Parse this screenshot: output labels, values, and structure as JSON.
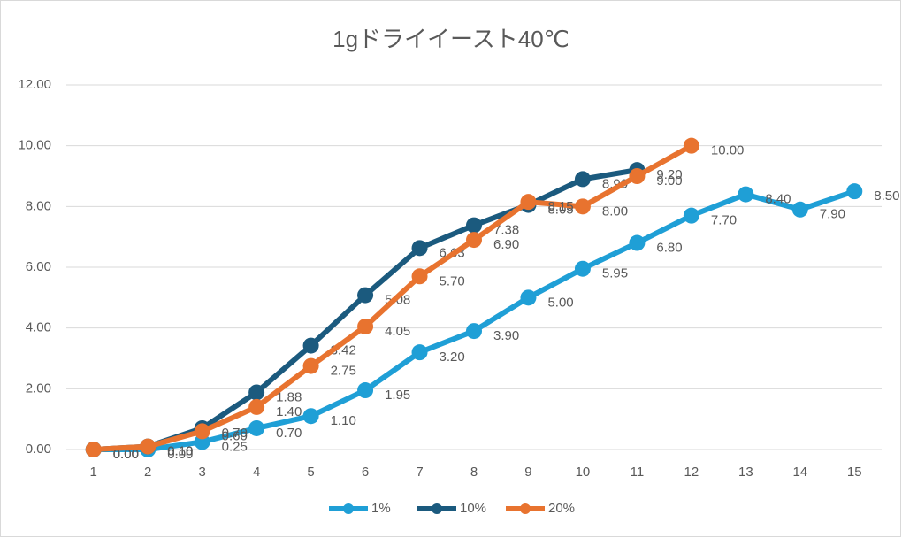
{
  "chart_data": {
    "type": "line",
    "title": "1gドライイースト40℃",
    "categories": [
      "1",
      "2",
      "3",
      "4",
      "5",
      "6",
      "7",
      "8",
      "9",
      "10",
      "11",
      "12",
      "13",
      "14",
      "15"
    ],
    "ylim": [
      0,
      12
    ],
    "yticks": [
      {
        "value": 0,
        "label": "0.00"
      },
      {
        "value": 2,
        "label": "2.00"
      },
      {
        "value": 4,
        "label": "4.00"
      },
      {
        "value": 6,
        "label": "6.00"
      },
      {
        "value": 8,
        "label": "8.00"
      },
      {
        "value": 10,
        "label": "10.00"
      },
      {
        "value": 12,
        "label": "12.00"
      }
    ],
    "grid": true,
    "legend": "bottom",
    "series": [
      {
        "name": "1%",
        "color": "#1f9fd6",
        "values": [
          0,
          0,
          0.25,
          0.7,
          1.1,
          1.95,
          3.2,
          3.9,
          5,
          5.95,
          6.8,
          7.7,
          8.4,
          7.9,
          8.5
        ],
        "value_labels": [
          "0.00",
          "0.00",
          "0.25",
          "0.70",
          "1.10",
          "1.95",
          "3.20",
          "3.90",
          "5.00",
          "5.95",
          "6.80",
          "7.70",
          "8.40",
          "7.90",
          "8.50"
        ]
      },
      {
        "name": "10%",
        "color": "#1b5a7e",
        "values": [
          0,
          0.1,
          0.7,
          1.88,
          3.42,
          5.08,
          6.63,
          7.38,
          8.05,
          8.9,
          9.2,
          null,
          null,
          null,
          null
        ],
        "value_labels": [
          "0.00",
          "0.10",
          "0.70",
          "1.88",
          "3.42",
          "5.08",
          "6.63",
          "7.38",
          "8.05",
          "8.90",
          "9.20",
          null,
          null,
          null,
          null
        ]
      },
      {
        "name": "20%",
        "color": "#e8732f",
        "values": [
          0,
          0.1,
          0.6,
          1.4,
          2.75,
          4.05,
          5.7,
          6.9,
          8.15,
          8,
          9,
          10,
          null,
          null,
          null
        ],
        "value_labels": [
          "0.00",
          "0.10",
          "0.60",
          "1.40",
          "2.75",
          "4.05",
          "5.70",
          "6.90",
          "8.15",
          "8.00",
          "9.00",
          "10.00",
          null,
          null,
          null
        ]
      }
    ]
  }
}
